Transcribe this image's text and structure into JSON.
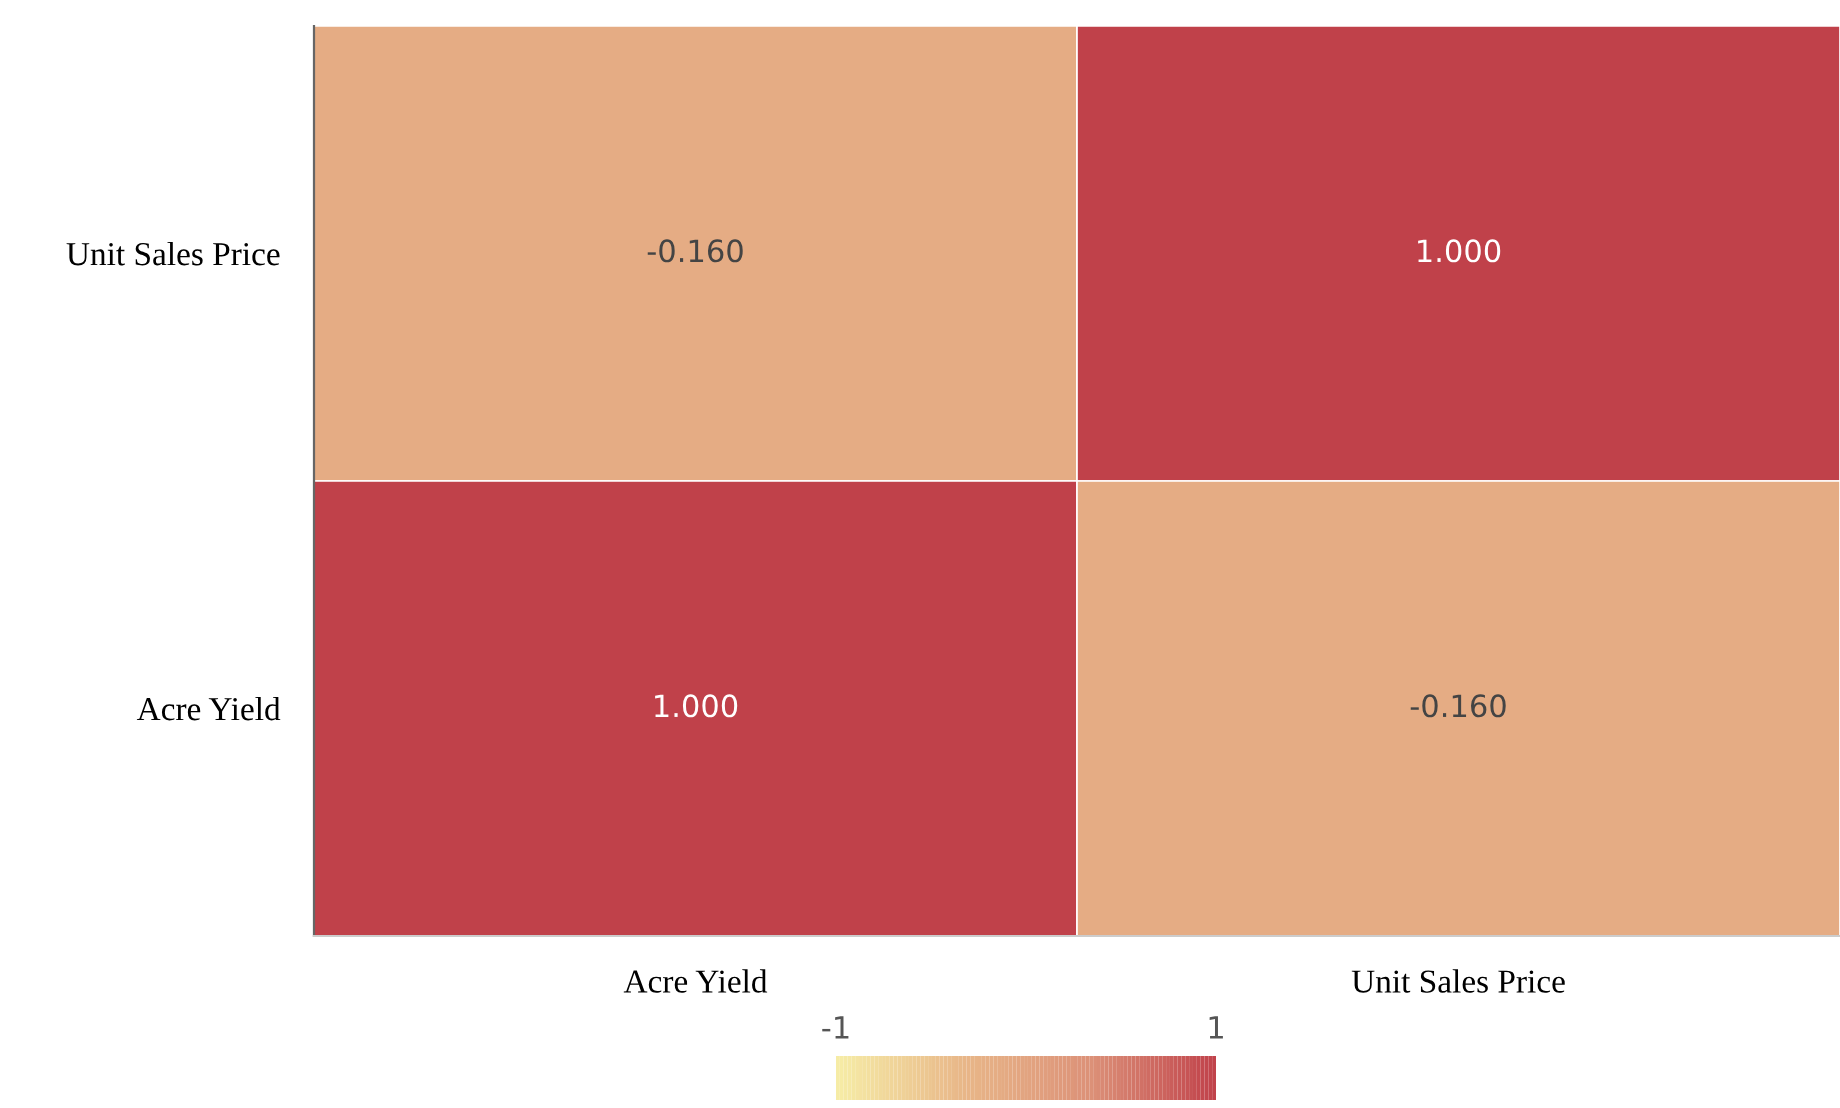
{
  "chart_data": {
    "type": "heatmap",
    "categories": [
      "Acre Yield",
      "Unit Sales Price"
    ],
    "y_categories": [
      "Unit Sales Price",
      "Acre Yield"
    ],
    "cells": [
      [
        -0.16,
        1.0
      ],
      [
        1.0,
        -0.16
      ]
    ],
    "cell_labels": [
      [
        "-0.160",
        "1.000"
      ],
      [
        "1.000",
        "-0.160"
      ]
    ],
    "clim": [
      -1,
      1
    ],
    "cticks": [
      -1,
      1
    ]
  }
}
